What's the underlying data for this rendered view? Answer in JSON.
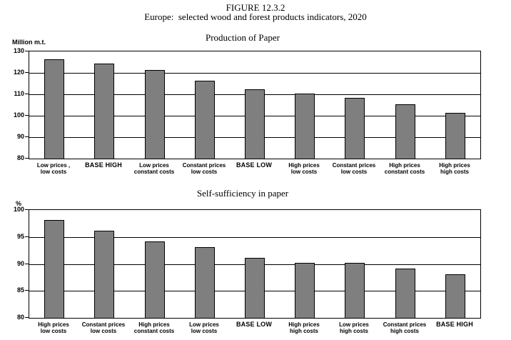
{
  "figure": {
    "title_line1": "FIGURE 12.3.2",
    "title_line2": "Europe:  selected wood and forest products indicators, 2020"
  },
  "colors": {
    "bar_fill": "#7f7f7f",
    "line": "#000000",
    "background": "#ffffff"
  },
  "chart_data": [
    {
      "type": "bar",
      "title": "Production of Paper",
      "ylabel": "Million m.t.",
      "xlabel": "",
      "ylim": [
        80,
        130
      ],
      "yticks": [
        130,
        120,
        110,
        100,
        90,
        80
      ],
      "gridlines": [
        120,
        110,
        100,
        90
      ],
      "grid": true,
      "legend": "none",
      "categories": [
        [
          "Low prices ,",
          "low costs"
        ],
        [
          "BASE HIGH"
        ],
        [
          "Low prices",
          "constant costs"
        ],
        [
          "Constant prices",
          "low costs"
        ],
        [
          "BASE LOW"
        ],
        [
          "High prices",
          "low costs"
        ],
        [
          "Constant prices",
          "low costs"
        ],
        [
          "High prices",
          "constant costs"
        ],
        [
          "High prices",
          "high costs"
        ]
      ],
      "values": [
        126,
        124,
        121,
        116,
        112,
        110,
        108,
        105,
        101
      ]
    },
    {
      "type": "bar",
      "title": "Self-sufficiency in paper",
      "ylabel": "%",
      "xlabel": "",
      "ylim": [
        80,
        100
      ],
      "yticks": [
        100,
        95,
        90,
        85,
        80
      ],
      "gridlines": [
        95,
        90,
        85
      ],
      "grid": true,
      "legend": "none",
      "categories": [
        [
          "High prices",
          "low costs"
        ],
        [
          "Constant prices",
          "low costs"
        ],
        [
          "High prices",
          "constant costs"
        ],
        [
          "Low prices",
          "low costs"
        ],
        [
          "BASE LOW"
        ],
        [
          "High prices",
          "high costs"
        ],
        [
          "Low prices",
          "high costs"
        ],
        [
          "Constant prices",
          "high costs"
        ],
        [
          "BASE HIGH"
        ]
      ],
      "values": [
        98,
        96,
        94,
        93,
        91,
        90,
        90,
        89,
        88
      ]
    }
  ]
}
